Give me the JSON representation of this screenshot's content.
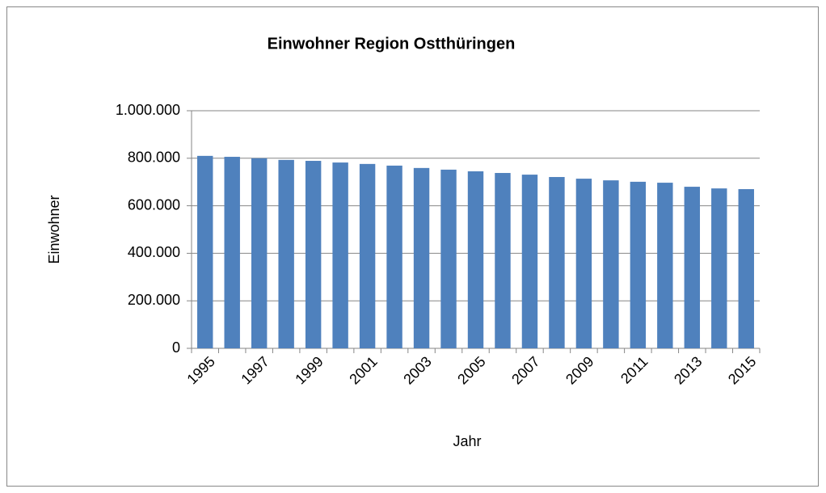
{
  "chart_data": {
    "type": "bar",
    "title": "Einwohner Region Ostthüringen",
    "x_label": "Jahr",
    "y_label": "Einwohner",
    "categories": [
      "1995",
      null,
      "1997",
      null,
      "1999",
      null,
      "2001",
      null,
      "2003",
      null,
      "2005",
      null,
      "2007",
      null,
      "2009",
      null,
      "2011",
      null,
      "2013",
      null,
      "2015"
    ],
    "values": [
      810000,
      806000,
      800000,
      793000,
      789000,
      782000,
      776000,
      769000,
      759000,
      752000,
      745000,
      738000,
      731000,
      721000,
      714000,
      707000,
      701000,
      697000,
      680000,
      673000,
      670000
    ],
    "color": "#4f81bd",
    "ylim": [
      0,
      1000000
    ],
    "yticks": [
      0,
      {
        "value": 200000,
        "label": "200.000"
      },
      {
        "value": 400000,
        "label": "400.000"
      },
      {
        "value": 600000,
        "label": "600.000"
      },
      {
        "value": 800000,
        "label": "800.000"
      },
      {
        "value": 1000000,
        "label": "1.000.000"
      }
    ],
    "grid": true
  }
}
